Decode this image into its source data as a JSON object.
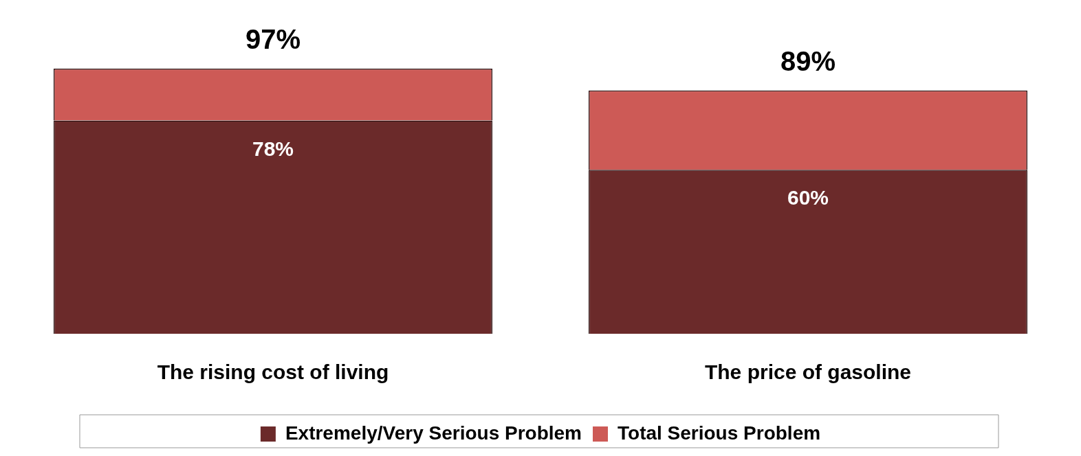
{
  "chart_data": {
    "type": "bar",
    "stacked": true,
    "categories": [
      "The rising cost of living",
      "The price of gasoline"
    ],
    "series": [
      {
        "name": "Extremely/Very Serious Problem",
        "color": "#6b2a2a",
        "values": [
          78,
          60
        ],
        "value_labels": [
          "78%",
          "60%"
        ]
      },
      {
        "name": "Total Serious Problem",
        "color": "#cd5a56",
        "values": [
          19,
          29
        ]
      }
    ],
    "totals": [
      "97%",
      "89%"
    ],
    "legend": "bottom",
    "grid": false
  }
}
